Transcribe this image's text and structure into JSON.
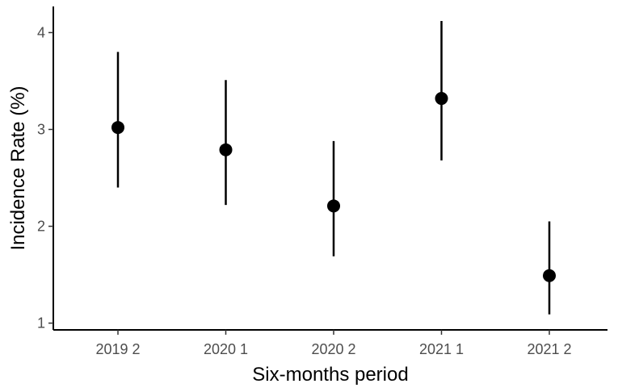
{
  "chart_data": {
    "type": "scatter",
    "xlabel": "Six-months period",
    "ylabel": "Incidence Rate (%)",
    "categories": [
      "2019 2",
      "2020 1",
      "2020 2",
      "2021 1",
      "2021 2"
    ],
    "values": [
      3.02,
      2.79,
      2.21,
      3.32,
      1.49
    ],
    "lower": [
      2.4,
      2.22,
      1.69,
      2.68,
      1.09
    ],
    "upper": [
      3.8,
      3.51,
      2.88,
      4.12,
      2.05
    ],
    "yticks": [
      1,
      2,
      3,
      4
    ],
    "ylim": [
      0.93,
      4.27
    ],
    "grid": false,
    "colors": {
      "points": "#000000",
      "axis": "#000000",
      "tick_text": "#4d4d4d"
    }
  }
}
